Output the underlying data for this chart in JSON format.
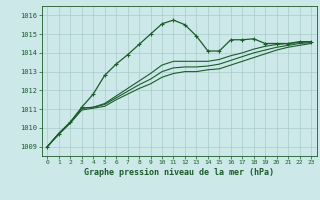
{
  "bg_color": "#cce8e8",
  "grid_color_major": "#aacccc",
  "grid_color_minor": "#bbdddd",
  "line_color": "#1a5c2a",
  "ylim": [
    1008.5,
    1016.5
  ],
  "xlim": [
    -0.5,
    23.5
  ],
  "yticks": [
    1009,
    1010,
    1011,
    1012,
    1013,
    1014,
    1015,
    1016
  ],
  "xticks": [
    0,
    1,
    2,
    3,
    4,
    5,
    6,
    7,
    8,
    9,
    10,
    11,
    12,
    13,
    14,
    15,
    16,
    17,
    18,
    19,
    20,
    21,
    22,
    23
  ],
  "xlabel": "Graphe pression niveau de la mer (hPa)",
  "series1": [
    1009.0,
    1009.7,
    1010.3,
    1011.1,
    1011.8,
    1012.8,
    1013.4,
    1013.9,
    1014.45,
    1015.0,
    1015.55,
    1015.75,
    1015.5,
    1014.9,
    1014.1,
    1014.1,
    1014.7,
    1014.7,
    1014.75,
    1014.5,
    1014.5,
    1014.5,
    1014.6,
    1014.6
  ],
  "series2": [
    1009.0,
    1009.7,
    1010.3,
    1011.05,
    1011.1,
    1011.3,
    1011.7,
    1012.1,
    1012.5,
    1012.9,
    1013.35,
    1013.55,
    1013.55,
    1013.55,
    1013.55,
    1013.65,
    1013.85,
    1014.0,
    1014.2,
    1014.35,
    1014.45,
    1014.5,
    1014.55,
    1014.6
  ],
  "series3": [
    1009.0,
    1009.65,
    1010.25,
    1010.95,
    1011.05,
    1011.15,
    1011.5,
    1011.8,
    1012.1,
    1012.35,
    1012.7,
    1012.9,
    1013.0,
    1013.0,
    1013.1,
    1013.15,
    1013.35,
    1013.55,
    1013.75,
    1013.95,
    1014.15,
    1014.3,
    1014.4,
    1014.5
  ],
  "series4": [
    1009.0,
    1009.7,
    1010.3,
    1011.05,
    1011.1,
    1011.25,
    1011.6,
    1011.95,
    1012.3,
    1012.6,
    1013.0,
    1013.2,
    1013.25,
    1013.25,
    1013.3,
    1013.4,
    1013.6,
    1013.8,
    1014.0,
    1014.15,
    1014.3,
    1014.4,
    1014.5,
    1014.55
  ]
}
